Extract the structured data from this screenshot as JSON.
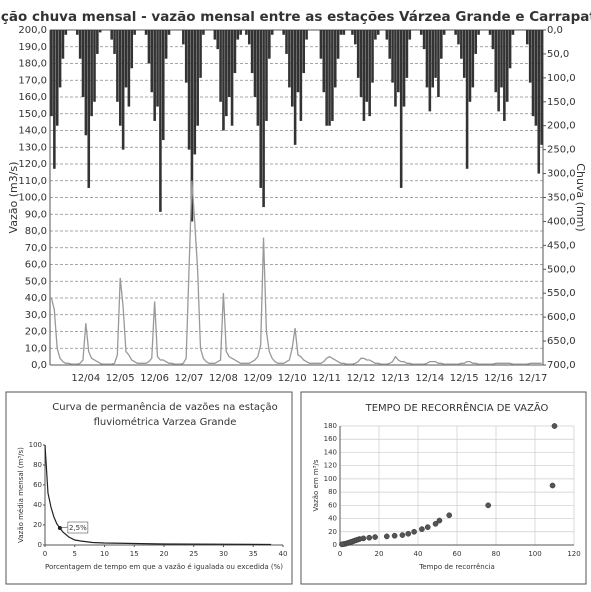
{
  "chart_data": [
    {
      "type": "bar_line",
      "title": "Relação chuva mensal - vazão mensal entre as estações Várzea Grande e Carrapateira",
      "ylabel": "Vazão (m3/s)",
      "y2label": "Chuva (mm)",
      "categories": [
        null,
        null,
        null,
        null,
        null,
        null,
        null,
        null,
        null,
        null,
        null,
        null,
        "12/04",
        null,
        null,
        null,
        null,
        null,
        null,
        null,
        null,
        null,
        null,
        null,
        "12/05",
        null,
        null,
        null,
        null,
        null,
        null,
        null,
        null,
        null,
        null,
        null,
        "12/06",
        null,
        null,
        null,
        null,
        null,
        null,
        null,
        null,
        null,
        null,
        null,
        "12/07",
        null,
        null,
        null,
        null,
        null,
        null,
        null,
        null,
        null,
        null,
        null,
        "12/08",
        null,
        null,
        null,
        null,
        null,
        null,
        null,
        null,
        null,
        null,
        null,
        "12/09",
        null,
        null,
        null,
        null,
        null,
        null,
        null,
        null,
        null,
        null,
        null,
        "12/10",
        null,
        null,
        null,
        null,
        null,
        null,
        null,
        null,
        null,
        null,
        null,
        "12/11",
        null,
        null,
        null,
        null,
        null,
        null,
        null,
        null,
        null,
        null,
        null,
        "12/12",
        null,
        null,
        null,
        null,
        null,
        null,
        null,
        null,
        null,
        null,
        null,
        "12/13",
        null,
        null,
        null,
        null,
        null,
        null,
        null,
        null,
        null,
        null,
        null,
        "12/14",
        null,
        null,
        null,
        null,
        null,
        null,
        null,
        null,
        null,
        null,
        null,
        "12/15",
        null,
        null,
        null,
        null,
        null,
        null,
        null,
        null,
        null,
        null,
        null,
        "12/16",
        null,
        null,
        null,
        null,
        null,
        null,
        null,
        null,
        null,
        null,
        null,
        "12/17",
        null,
        null,
        null
      ],
      "series": [
        {
          "type": "bar",
          "axis": "y2",
          "color": "#333333",
          "values": [
            180,
            290,
            200,
            120,
            60,
            10,
            0,
            0,
            0,
            10,
            60,
            140,
            220,
            330,
            180,
            150,
            50,
            5,
            0,
            0,
            0,
            20,
            50,
            150,
            200,
            250,
            120,
            160,
            80,
            10,
            0,
            0,
            0,
            10,
            70,
            130,
            190,
            160,
            380,
            230,
            60,
            10,
            0,
            0,
            0,
            0,
            30,
            110,
            250,
            400,
            260,
            200,
            100,
            10,
            0,
            0,
            0,
            20,
            40,
            150,
            210,
            180,
            140,
            200,
            90,
            20,
            10,
            0,
            10,
            30,
            90,
            140,
            200,
            330,
            370,
            190,
            60,
            10,
            0,
            0,
            0,
            10,
            50,
            120,
            160,
            240,
            130,
            190,
            90,
            20,
            0,
            0,
            0,
            0,
            60,
            130,
            200,
            200,
            190,
            120,
            60,
            10,
            10,
            0,
            0,
            10,
            30,
            100,
            140,
            190,
            150,
            180,
            110,
            20,
            10,
            0,
            0,
            20,
            60,
            110,
            160,
            130,
            330,
            160,
            100,
            20,
            0,
            0,
            0,
            10,
            40,
            120,
            170,
            120,
            100,
            140,
            60,
            10,
            0,
            0,
            0,
            10,
            30,
            60,
            100,
            290,
            150,
            120,
            50,
            10,
            0,
            0,
            0,
            10,
            40,
            130,
            170,
            120,
            190,
            150,
            80,
            10,
            0,
            0,
            0,
            0,
            30,
            110,
            180,
            200,
            300,
            240
          ]
        },
        {
          "type": "line",
          "color": "#999999",
          "values": [
            40,
            33,
            10,
            4,
            2,
            1,
            1,
            0.5,
            0.5,
            0.5,
            1,
            3,
            25,
            8,
            4,
            3,
            2,
            1,
            0.5,
            0.5,
            0.5,
            0.5,
            1,
            6,
            52,
            35,
            8,
            6,
            3,
            2,
            1,
            1,
            1,
            1,
            2,
            4,
            38,
            5,
            3,
            3,
            2,
            1,
            1,
            0.5,
            0.5,
            0.5,
            1,
            4,
            57,
            110,
            85,
            57,
            10,
            4,
            2,
            1,
            1,
            1,
            2,
            3,
            43,
            8,
            5,
            4,
            3,
            2,
            1,
            1,
            1,
            1,
            2,
            3,
            5,
            12,
            76,
            20,
            8,
            4,
            2,
            1,
            1,
            1,
            2,
            3,
            10,
            22,
            6,
            5,
            3,
            2,
            1,
            1,
            1,
            1,
            1,
            2,
            4,
            5,
            4,
            3,
            2,
            1,
            1,
            0.5,
            0.5,
            0.5,
            1,
            2,
            4,
            4,
            3,
            3,
            2,
            1,
            1,
            0.5,
            0.5,
            0.5,
            1,
            2,
            5,
            3,
            2,
            2,
            1,
            1,
            0.5,
            0.5,
            0.5,
            0.5,
            0.5,
            1,
            2,
            2,
            2,
            1,
            1,
            0.5,
            0.5,
            0.5,
            0.5,
            0.5,
            0.5,
            1,
            1,
            2,
            2,
            1,
            1,
            0.5,
            0.5,
            0.5,
            0.5,
            0.5,
            0.5,
            1,
            1,
            1,
            1,
            1,
            1,
            0.5,
            0.5,
            0.5,
            0.5,
            0.5,
            0.5,
            1,
            1,
            1,
            1,
            1
          ]
        }
      ],
      "ylim": [
        0,
        200
      ],
      "yticks": [
        {
          "value": 0,
          "label": "0,0"
        },
        {
          "value": 10,
          "label": "10,0"
        },
        {
          "value": 20,
          "label": "20,0"
        },
        {
          "value": 30,
          "label": "30,0"
        },
        {
          "value": 40,
          "label": "40,0"
        },
        {
          "value": 50,
          "label": "50,0"
        },
        {
          "value": 60,
          "label": "60,0"
        },
        {
          "value": 70,
          "label": "70,0"
        },
        {
          "value": 80,
          "label": "80,0"
        },
        {
          "value": 90,
          "label": "90,0"
        },
        {
          "value": 100,
          "label": "100,0"
        },
        {
          "value": 110,
          "label": "110,0"
        },
        {
          "value": 120,
          "label": "120,0"
        },
        {
          "value": 130,
          "label": "130,0"
        },
        {
          "value": 140,
          "label": "140,0"
        },
        {
          "value": 150,
          "label": "150,0"
        },
        {
          "value": 160,
          "label": "160,0"
        },
        {
          "value": 170,
          "label": "170,0"
        },
        {
          "value": 180,
          "label": "180,0"
        },
        {
          "value": 190,
          "label": "190,0"
        },
        {
          "value": 200,
          "label": "200,0"
        }
      ],
      "y2lim": [
        700,
        0
      ],
      "y2ticks": [
        {
          "value": 0,
          "label": "0,0"
        },
        {
          "value": 50,
          "label": "50,0"
        },
        {
          "value": 100,
          "label": "100,0"
        },
        {
          "value": 150,
          "label": "150,0"
        },
        {
          "value": 200,
          "label": "200,0"
        },
        {
          "value": 250,
          "label": "250,0"
        },
        {
          "value": 300,
          "label": "300,0"
        },
        {
          "value": 350,
          "label": "350,0"
        },
        {
          "value": 400,
          "label": "400,0"
        },
        {
          "value": 450,
          "label": "450,0"
        },
        {
          "value": 500,
          "label": "500,0"
        },
        {
          "value": 550,
          "label": "550,0"
        },
        {
          "value": 600,
          "label": "600,0"
        },
        {
          "value": 650,
          "label": "650,0"
        },
        {
          "value": 700,
          "label": "700,0"
        }
      ],
      "grid": true
    },
    {
      "type": "line",
      "title": "Curva de permanência de vazões na estação fluviométrica Varzea Grande",
      "xlabel": "Porcentagem de tempo em que a vazão é igualada ou excedida (%)",
      "ylabel": "Vazão média mensal (m³/s)",
      "x": [
        0,
        0.5,
        1,
        1.5,
        2,
        2.5,
        3,
        4,
        5,
        6,
        8,
        10,
        15,
        20,
        30,
        38
      ],
      "series": [
        {
          "color": "#222222",
          "values": [
            100,
            52,
            38,
            28,
            21,
            17,
            13,
            8,
            5,
            4,
            2.5,
            2,
            1.5,
            1,
            0.8,
            0.5
          ]
        }
      ],
      "annotations": [
        {
          "text": "2,5%",
          "x": 2.5,
          "y": 17
        }
      ],
      "xlim": [
        0,
        40
      ],
      "xticks": [
        0,
        5,
        10,
        15,
        20,
        25,
        30,
        35,
        40
      ],
      "ylim": [
        0,
        100
      ],
      "yticks": [
        0,
        20,
        40,
        60,
        80,
        100
      ],
      "grid": false
    },
    {
      "type": "scatter",
      "title": "TEMPO DE RECORRÊNCIA DE VAZÃO",
      "xlabel": "Tempo de recorrência",
      "ylabel": "Vazão em m³/s",
      "color": "#555555",
      "x": [
        110,
        109,
        76,
        56,
        51,
        49,
        45,
        42,
        38,
        35,
        32,
        28,
        24,
        18,
        15,
        12,
        10,
        9,
        8,
        7,
        6,
        5,
        4,
        3,
        2,
        1
      ],
      "values": [
        180,
        90,
        60,
        45,
        37,
        32,
        27,
        24,
        20,
        17,
        15,
        14,
        13,
        12,
        11,
        10,
        9,
        8,
        7,
        6,
        5,
        4,
        3,
        2,
        1.5,
        1
      ],
      "xlim": [
        0,
        120
      ],
      "xticks": [
        0,
        20,
        40,
        60,
        80,
        100,
        120
      ],
      "ylim": [
        0,
        180
      ],
      "yticks": [
        0,
        20,
        40,
        60,
        80,
        100,
        120,
        140,
        160,
        180
      ],
      "grid": true
    }
  ]
}
